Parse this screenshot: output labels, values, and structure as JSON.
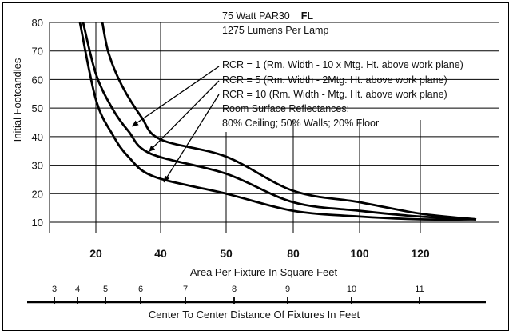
{
  "chart_data": {
    "type": "line",
    "ylabel": "Initial Footcandles",
    "xlabel": "Area Per Fixture In Square Feet",
    "ylim": [
      10,
      80
    ],
    "y_ticks": [
      "80",
      "70",
      "60",
      "50",
      "40",
      "30",
      "20",
      "10"
    ],
    "x_ticks": [
      "20",
      "40",
      "50",
      "80",
      "100",
      "120"
    ],
    "secondary_axis": {
      "label": "Center To Center Distance Of Fixtures In Feet",
      "ticks": [
        "3",
        "4",
        "5",
        "6",
        "7",
        "8",
        "9",
        "10",
        "11"
      ]
    },
    "annotation": {
      "title_line1": "75 Watt PAR30",
      "title_badge": "FL",
      "title_line2": "1275 Lumens Per Lamp",
      "legend_lines": [
        "RCR = 1 (Rm. Width - 10 x Mtg. Ht. above work plane)",
        "RCR = 5 (Rm. Width - 2Mtg. Ht. above work plane)",
        "RCR = 10 (Rm. Width - Mtg. Ht. above work plane)",
        "Room Surface Reflectances:",
        "80% Ceiling; 50% Walls; 20% Floor"
      ]
    },
    "grid": true,
    "series": [
      {
        "name": "RCR = 1",
        "x": [
          22,
          24,
          28,
          34,
          40,
          50,
          80,
          100,
          120
        ],
        "y": [
          80,
          69,
          58,
          47,
          39,
          33,
          21,
          17,
          13
        ]
      },
      {
        "name": "RCR = 5",
        "x": [
          16,
          20,
          25,
          30,
          37,
          50,
          80,
          100,
          120
        ],
        "y": [
          80,
          62,
          50,
          42,
          34,
          27,
          17,
          14,
          12
        ]
      },
      {
        "name": "RCR = 10",
        "x": [
          15,
          20,
          25,
          30,
          38,
          50,
          80,
          100,
          120
        ],
        "y": [
          80,
          53,
          41,
          33,
          26,
          20,
          14,
          12,
          11
        ]
      }
    ]
  }
}
